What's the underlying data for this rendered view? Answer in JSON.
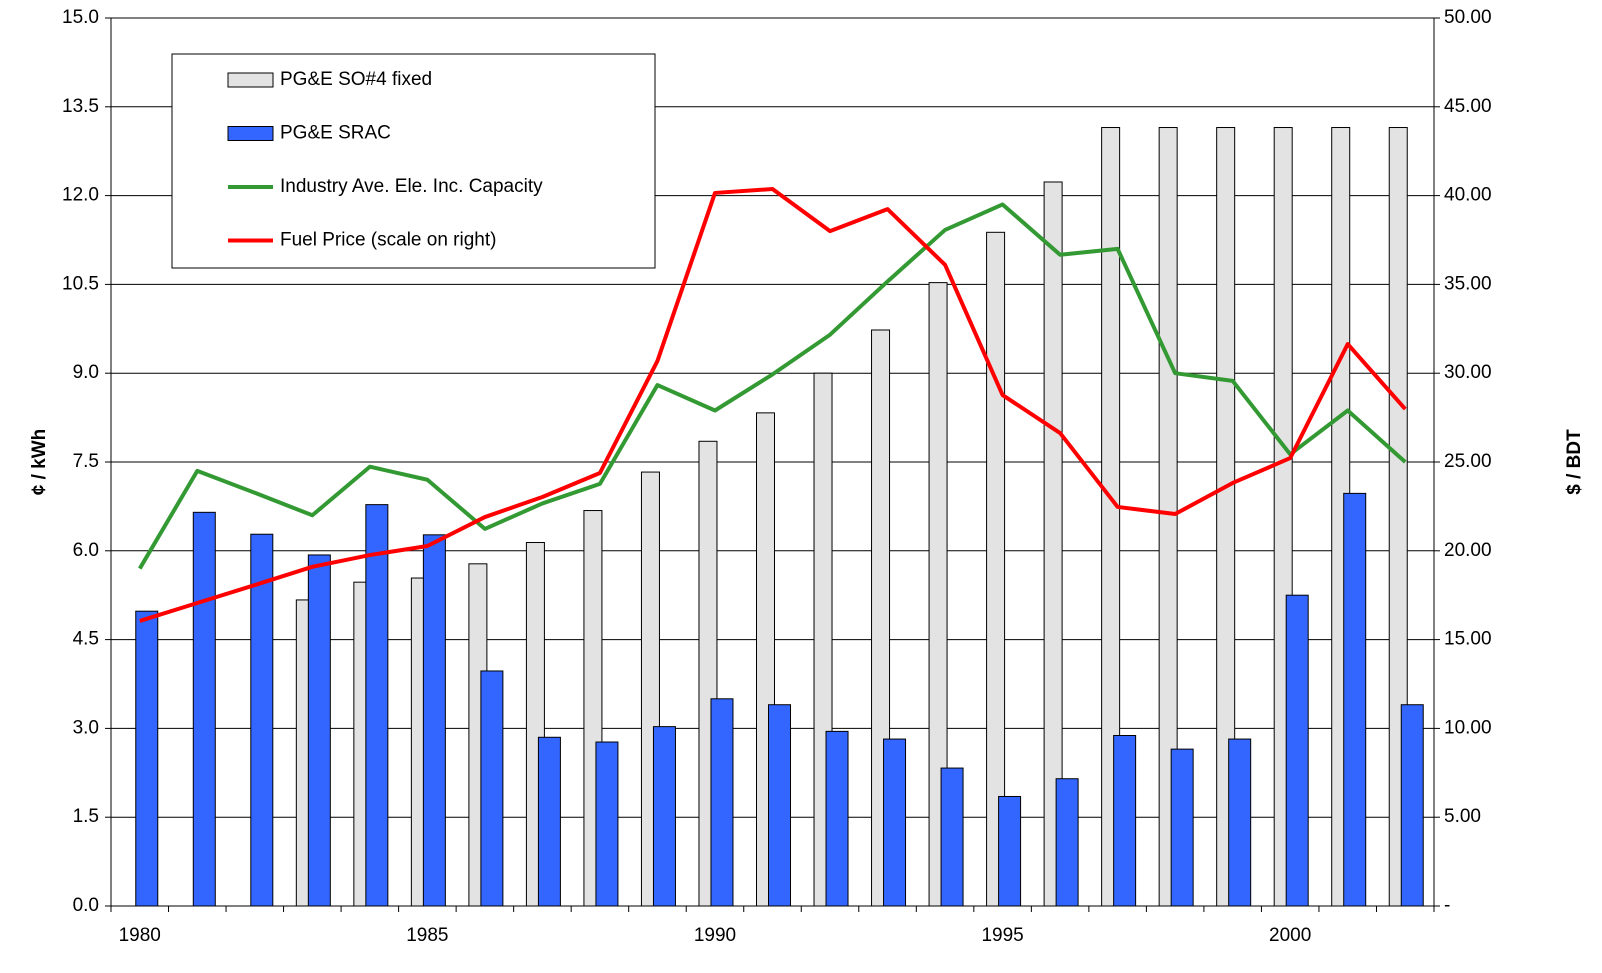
{
  "chart_data": {
    "type": "bar_line",
    "y_label": "¢ / kWh",
    "y2_label": "$ / BDT",
    "categories": [
      "1980",
      null,
      null,
      null,
      null,
      "1985",
      null,
      null,
      null,
      null,
      "1990",
      null,
      null,
      null,
      null,
      "1995",
      null,
      null,
      null,
      null,
      "2000",
      null,
      null
    ],
    "series": [
      {
        "name": "PG&E SO#4 fixed",
        "type": "bar",
        "color": "#e3e3e3",
        "values": [
          null,
          null,
          null,
          5.17,
          5.47,
          5.54,
          5.78,
          6.14,
          6.68,
          7.33,
          7.85,
          8.33,
          9.0,
          9.73,
          10.53,
          11.38,
          12.23,
          13.15,
          13.15,
          13.15,
          13.15,
          13.15,
          13.15
        ]
      },
      {
        "name": "PG&E SRAC",
        "type": "bar",
        "color": "#3366ff",
        "values": [
          4.98,
          6.65,
          6.28,
          5.93,
          6.78,
          6.27,
          3.97,
          2.85,
          2.77,
          3.03,
          3.5,
          3.4,
          2.95,
          2.82,
          2.33,
          1.85,
          2.15,
          2.88,
          2.65,
          2.82,
          5.25,
          6.97,
          3.4
        ]
      },
      {
        "name": "Industry Ave. Ele. Inc. Capacity",
        "type": "line",
        "color": "#339933",
        "values": [
          5.7,
          7.35,
          6.98,
          6.6,
          7.42,
          7.2,
          6.37,
          6.8,
          7.13,
          8.8,
          8.37,
          8.98,
          9.65,
          10.55,
          11.42,
          11.85,
          11.0,
          11.1,
          9.0,
          8.87,
          7.63,
          8.37,
          7.5
        ]
      },
      {
        "name": "Fuel Price (scale on right)",
        "type": "line",
        "axis": "y2",
        "color": "#ff0000",
        "values": [
          16.05,
          17.06,
          18.07,
          19.1,
          19.76,
          20.27,
          21.9,
          23.03,
          24.38,
          30.69,
          40.15,
          40.37,
          38.0,
          39.24,
          36.1,
          28.77,
          26.63,
          22.47,
          22.07,
          23.82,
          25.22,
          31.64,
          27.98
        ]
      }
    ],
    "ylim": [
      0,
      15
    ],
    "yticks": [
      {
        "value": 0,
        "label": "0.0"
      },
      1.5,
      {
        "value": 3,
        "label": "3.0"
      },
      4.5,
      {
        "value": 6,
        "label": "6.0"
      },
      7.5,
      {
        "value": 9,
        "label": "9.0"
      },
      10.5,
      {
        "value": 12,
        "label": "12.0"
      },
      13.5,
      {
        "value": 15,
        "label": "15.0"
      }
    ],
    "y2lim": [
      0,
      50
    ],
    "y2ticks": [
      {
        "value": 0,
        "label": "-"
      },
      {
        "value": 5,
        "label": "5.00"
      },
      {
        "value": 10,
        "label": "10.00"
      },
      {
        "value": 15,
        "label": "15.00"
      },
      {
        "value": 20,
        "label": "20.00"
      },
      {
        "value": 25,
        "label": "25.00"
      },
      {
        "value": 30,
        "label": "30.00"
      },
      {
        "value": 35,
        "label": "35.00"
      },
      {
        "value": 40,
        "label": "40.00"
      },
      {
        "value": 45,
        "label": "45.00"
      },
      {
        "value": 50,
        "label": "50.00"
      }
    ],
    "grid": true,
    "legend": "upper left"
  }
}
